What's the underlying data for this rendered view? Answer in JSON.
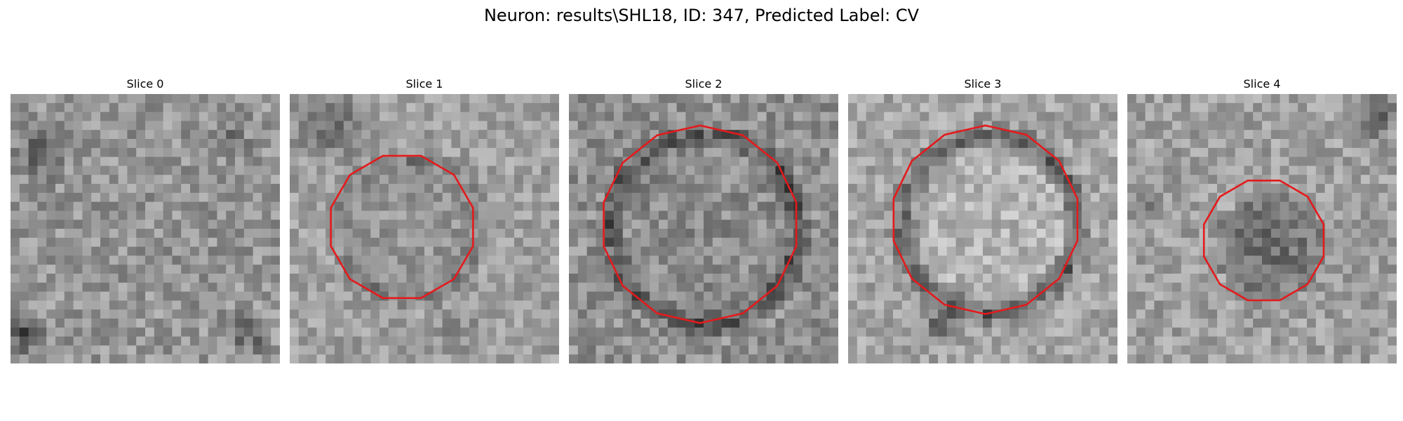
{
  "title": "Neuron: results\\SHL18, ID: 347, Predicted Label: CV",
  "slices": [
    {
      "label": "Slice 0"
    },
    {
      "label": "Slice 1"
    },
    {
      "label": "Slice 2"
    },
    {
      "label": "Slice 3"
    },
    {
      "label": "Slice 4"
    }
  ],
  "colors": {
    "contour": "#e41a1c",
    "background": "#ffffff"
  }
}
